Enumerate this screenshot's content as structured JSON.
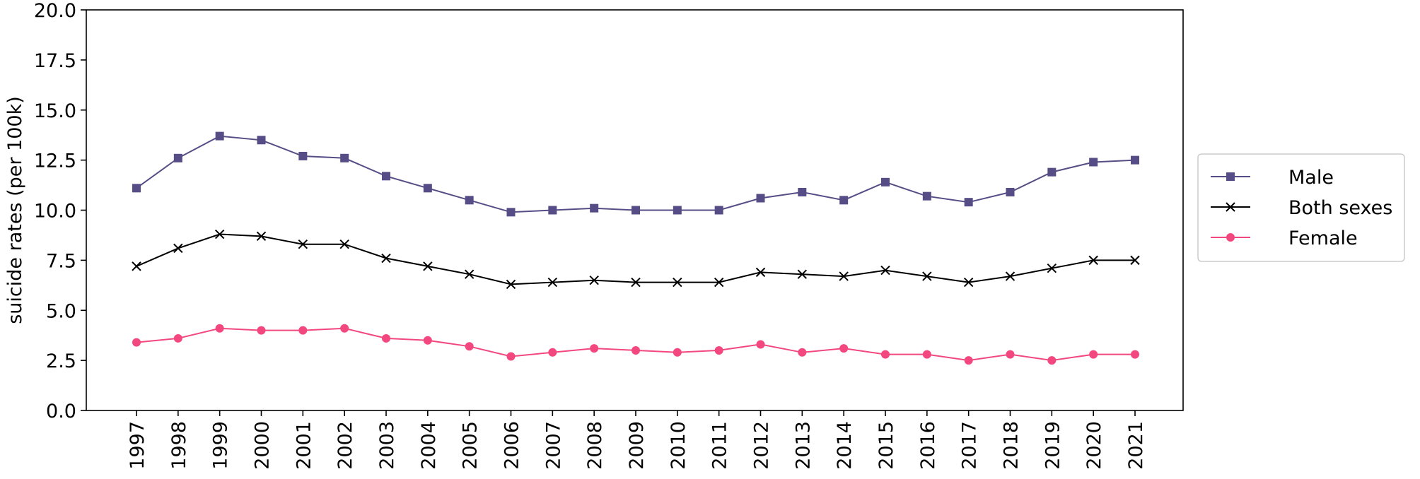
{
  "chart_data": {
    "type": "line",
    "title": "",
    "xlabel": "",
    "ylabel": "suicide rates (per 100k)",
    "x": [
      "1997",
      "1998",
      "1999",
      "2000",
      "2001",
      "2002",
      "2003",
      "2004",
      "2005",
      "2006",
      "2007",
      "2008",
      "2009",
      "2010",
      "2011",
      "2012",
      "2013",
      "2014",
      "2015",
      "2016",
      "2017",
      "2018",
      "2019",
      "2020",
      "2021"
    ],
    "ylim": [
      0,
      20
    ],
    "yticks": [
      "0.0",
      "2.5",
      "5.0",
      "7.5",
      "10.0",
      "12.5",
      "15.0",
      "17.5",
      "20.0"
    ],
    "grid": false,
    "legend_position": "right",
    "series": [
      {
        "name": "Male",
        "color": "#574d86",
        "marker": "square",
        "values": [
          11.1,
          12.6,
          13.7,
          13.5,
          12.7,
          12.6,
          11.7,
          11.1,
          10.5,
          9.9,
          10.0,
          10.1,
          10.0,
          10.0,
          10.0,
          10.6,
          10.9,
          10.5,
          11.4,
          10.7,
          10.4,
          10.9,
          11.9,
          12.4,
          12.5
        ]
      },
      {
        "name": "Both sexes",
        "color": "#000000",
        "marker": "x",
        "values": [
          7.2,
          8.1,
          8.8,
          8.7,
          8.3,
          8.3,
          7.6,
          7.2,
          6.8,
          6.3,
          6.4,
          6.5,
          6.4,
          6.4,
          6.4,
          6.9,
          6.8,
          6.7,
          7.0,
          6.7,
          6.4,
          6.7,
          7.1,
          7.5,
          7.5
        ]
      },
      {
        "name": "Female",
        "color": "#f2487f",
        "marker": "circle",
        "values": [
          3.4,
          3.6,
          4.1,
          4.0,
          4.0,
          4.1,
          3.6,
          3.5,
          3.2,
          2.7,
          2.9,
          3.1,
          3.0,
          2.9,
          3.0,
          3.3,
          2.9,
          3.1,
          2.8,
          2.8,
          2.5,
          2.8,
          2.5,
          2.8,
          2.8
        ]
      }
    ]
  }
}
